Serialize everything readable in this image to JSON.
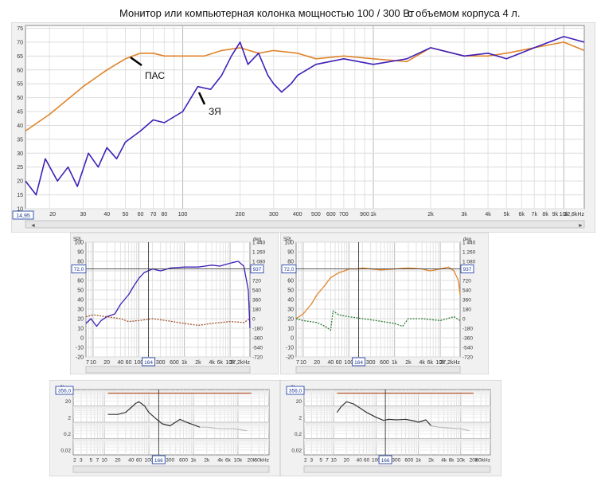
{
  "title": {
    "main": "Монитор или компьютерная колонка мощностью 100 / 300 Вт",
    "extra": "с объемом корпуса 4 л."
  },
  "colors": {
    "orange": "#e0842a",
    "blue": "#3f1fb8",
    "brown": "#a0522d",
    "green": "#2e7d32",
    "dark": "#333333",
    "grey": "#bbbbbb",
    "red_line": "#b5562f"
  },
  "chart_data": [
    {
      "type": "line",
      "scale": "log-x",
      "xlim": [
        14.95,
        12800
      ],
      "ylim": [
        10,
        76
      ],
      "x_ticks": [
        20,
        30,
        40,
        50,
        60,
        70,
        80,
        100,
        200,
        300,
        400,
        500,
        600,
        700,
        900,
        1000,
        2000,
        3000,
        4000,
        5000,
        6000,
        7000,
        8000,
        9000,
        10000,
        12800
      ],
      "x_tick_labels": [
        "20",
        "30",
        "40",
        "50",
        "60",
        "70",
        "80",
        "100",
        "200",
        "300",
        "400",
        "500",
        "600",
        "700",
        "900",
        "1k",
        "2k",
        "3k",
        "4k",
        "5k",
        "6k",
        "7k",
        "8k",
        "9k",
        "10k",
        "12,8kHz"
      ],
      "x_start_label": "14,95",
      "y_ticks": [
        10,
        15,
        20,
        25,
        30,
        35,
        40,
        45,
        50,
        55,
        60,
        65,
        70,
        75
      ],
      "annotations": [
        "ПАС",
        "ЗЯ"
      ],
      "series": [
        {
          "color": "orange",
          "x": [
            14.95,
            20,
            30,
            40,
            50,
            60,
            70,
            80,
            100,
            130,
            160,
            200,
            250,
            300,
            400,
            500,
            700,
            1000,
            1500,
            2000,
            3000,
            4000,
            5000,
            7000,
            10000,
            12800
          ],
          "y": [
            38,
            44,
            54,
            60,
            64,
            66,
            66,
            65,
            65,
            65,
            67,
            68,
            66,
            67,
            66,
            64,
            65,
            64,
            63,
            68,
            65,
            65,
            66,
            68,
            70,
            67
          ]
        },
        {
          "color": "blue",
          "x": [
            14.95,
            17,
            19,
            22,
            25,
            28,
            32,
            36,
            40,
            45,
            50,
            60,
            70,
            80,
            100,
            120,
            140,
            160,
            180,
            200,
            220,
            250,
            280,
            300,
            330,
            370,
            400,
            500,
            700,
            1000,
            1500,
            2000,
            3000,
            4000,
            5000,
            7000,
            10000,
            12800
          ],
          "y": [
            20,
            15,
            28,
            20,
            25,
            18,
            30,
            25,
            32,
            28,
            34,
            38,
            42,
            41,
            45,
            54,
            53,
            58,
            65,
            70,
            62,
            66,
            58,
            55,
            52,
            55,
            58,
            62,
            64,
            62,
            64,
            68,
            65,
            66,
            64,
            68,
            72,
            70
          ]
        }
      ]
    },
    {
      "type": "line",
      "scale": "log-x",
      "xlim": [
        7,
        27200
      ],
      "ylim": [
        -20,
        100
      ],
      "ylabel": "SPL",
      "y2label": "deg",
      "x_ticks": [
        7,
        10,
        20,
        40,
        60,
        100,
        300,
        600,
        1000,
        2000,
        4000,
        6000,
        10000,
        27200
      ],
      "x_tick_labels": [
        "7",
        "10",
        "20",
        "40",
        "60",
        "100",
        "300",
        "600",
        "1k",
        "2k",
        "4k",
        "6k",
        "10k",
        "27,2kHz"
      ],
      "cursor_x_label": "164",
      "cursor_y_label": "72,0",
      "right_box_label": "937",
      "y_ticks": [
        -20,
        -10,
        0,
        10,
        20,
        30,
        40,
        50,
        60,
        70,
        80,
        90,
        100
      ],
      "y2_tick_labels": [
        "1 440",
        "1 260",
        "1 080",
        "900",
        "720",
        "540",
        "360",
        "180",
        "0",
        "-180",
        "-360",
        "-540",
        "-720"
      ],
      "series": [
        {
          "color": "blue",
          "x": [
            7,
            9,
            12,
            15,
            20,
            30,
            40,
            60,
            80,
            100,
            130,
            160,
            200,
            300,
            500,
            1000,
            2000,
            4000,
            6000,
            10000,
            15000,
            20000,
            25000,
            27200
          ],
          "y": [
            15,
            20,
            12,
            18,
            22,
            25,
            35,
            45,
            55,
            62,
            68,
            70,
            72,
            70,
            73,
            74,
            74,
            76,
            75,
            78,
            80,
            75,
            50,
            10
          ]
        },
        {
          "color": "brown",
          "x": [
            7,
            10,
            20,
            40,
            60,
            100,
            200,
            400,
            1000,
            2000,
            4000,
            10000,
            20000,
            27200
          ],
          "y": [
            22,
            24,
            22,
            20,
            17,
            18,
            20,
            18,
            15,
            13,
            15,
            17,
            16,
            20
          ]
        }
      ]
    },
    {
      "type": "line",
      "scale": "log-x",
      "xlim": [
        7,
        27200
      ],
      "ylim": [
        -20,
        100
      ],
      "ylabel": "SPL",
      "y2label": "deg",
      "x_ticks": [
        7,
        10,
        20,
        40,
        60,
        100,
        300,
        600,
        1000,
        2000,
        4000,
        6000,
        10000,
        27200
      ],
      "x_tick_labels": [
        "7",
        "10",
        "20",
        "40",
        "60",
        "100",
        "300",
        "600",
        "1k",
        "2k",
        "4k",
        "6k",
        "10k",
        "27,2kHz"
      ],
      "cursor_x_label": "164",
      "cursor_y_label": "72,0",
      "right_box_label": "937",
      "y_ticks": [
        -20,
        -10,
        0,
        10,
        20,
        30,
        40,
        50,
        60,
        70,
        80,
        90,
        100
      ],
      "y2_tick_labels": [
        "1 440",
        "1 260",
        "1 080",
        "900",
        "720",
        "540",
        "360",
        "180",
        "0",
        "-180",
        "-360",
        "-540",
        "-720"
      ],
      "series": [
        {
          "color": "orange",
          "x": [
            7,
            10,
            15,
            20,
            30,
            40,
            60,
            80,
            100,
            150,
            200,
            300,
            500,
            1000,
            2000,
            4000,
            6000,
            10000,
            15000,
            20000,
            25000,
            27200
          ],
          "y": [
            20,
            25,
            35,
            45,
            55,
            63,
            68,
            70,
            72,
            72,
            73,
            72,
            71,
            72,
            73,
            72,
            70,
            72,
            74,
            70,
            60,
            45
          ]
        },
        {
          "color": "green",
          "x": [
            7,
            10,
            20,
            30,
            40,
            45,
            60,
            100,
            200,
            400,
            1000,
            1500,
            2000,
            4000,
            10000,
            20000,
            27200
          ],
          "y": [
            20,
            18,
            16,
            12,
            8,
            28,
            24,
            22,
            20,
            18,
            15,
            12,
            20,
            20,
            18,
            22,
            18
          ]
        }
      ]
    },
    {
      "type": "line",
      "scale": "log-x log-y",
      "xlim": [
        2,
        50000
      ],
      "ylim": [
        0.01,
        100
      ],
      "ylabel": "%",
      "x_ticks": [
        2,
        3,
        5,
        7,
        10,
        20,
        40,
        60,
        100,
        300,
        600,
        1000,
        2000,
        4000,
        6000,
        10000,
        20000,
        50000
      ],
      "x_tick_labels": [
        "2",
        "3",
        "5",
        "7",
        "10",
        "20",
        "40",
        "60",
        "100",
        "300",
        "600",
        "1k",
        "2k",
        "4k",
        "6k",
        "10k",
        "20k",
        "50kHz"
      ],
      "cursor_x_label": "166",
      "top_box_label": "356,0",
      "y_ticks": [
        0.02,
        0.2,
        2,
        20
      ],
      "y_tick_labels": [
        "0,02",
        "0,2",
        "2",
        "20"
      ],
      "series": [
        {
          "color": "red_line",
          "x": [
            12,
            20000
          ],
          "y": [
            60,
            60
          ]
        },
        {
          "color": "dark",
          "x": [
            12,
            20,
            30,
            40,
            50,
            60,
            80,
            100,
            150,
            200,
            300,
            500,
            700,
            1000,
            1400
          ],
          "y": [
            3,
            3,
            4,
            8,
            14,
            18,
            10,
            4,
            1.5,
            0.8,
            0.6,
            1.5,
            1,
            0.7,
            0.5
          ]
        },
        {
          "color": "grey",
          "x": [
            1400,
            2000,
            4000,
            8000,
            16000
          ],
          "y": [
            0.5,
            0.5,
            0.4,
            0.4,
            0.3
          ]
        }
      ]
    },
    {
      "type": "line",
      "scale": "log-x log-y",
      "xlim": [
        2,
        50000
      ],
      "ylim": [
        0.01,
        100
      ],
      "ylabel": "%",
      "x_ticks": [
        2,
        3,
        5,
        7,
        10,
        20,
        40,
        60,
        100,
        300,
        600,
        1000,
        2000,
        4000,
        6000,
        10000,
        20000,
        50000
      ],
      "x_tick_labels": [
        "2",
        "3",
        "5",
        "7",
        "10",
        "20",
        "40",
        "60",
        "100",
        "300",
        "600",
        "1k",
        "2k",
        "4k",
        "6k",
        "10k",
        "20k",
        "50kHz"
      ],
      "cursor_x_label": "166",
      "top_box_label": "356,0",
      "y_ticks": [
        0.02,
        0.2,
        2,
        20
      ],
      "y_tick_labels": [
        "0,02",
        "0,2",
        "2",
        "20"
      ],
      "series": [
        {
          "color": "red_line",
          "x": [
            12,
            20000
          ],
          "y": [
            60,
            60
          ]
        },
        {
          "color": "dark",
          "x": [
            12,
            15,
            20,
            30,
            40,
            60,
            100,
            150,
            200,
            300,
            500,
            800,
            1000,
            1500,
            2000
          ],
          "y": [
            4,
            9,
            18,
            13,
            8,
            4,
            2,
            1.3,
            1.5,
            1.4,
            1.5,
            1.2,
            1,
            1.4,
            0.6
          ]
        },
        {
          "color": "grey",
          "x": [
            2000,
            3000,
            5000,
            10000,
            16000
          ],
          "y": [
            0.6,
            0.5,
            0.45,
            0.4,
            0.3
          ]
        }
      ]
    }
  ]
}
